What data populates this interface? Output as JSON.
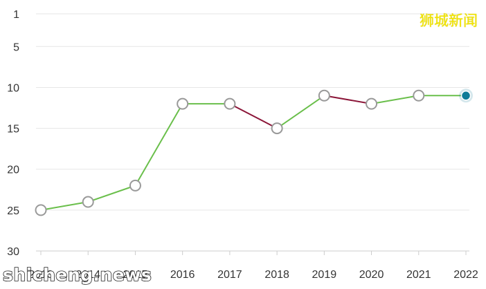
{
  "watermarks": {
    "top_right": "狮城新闻",
    "bottom_left": "shicheng.news"
  },
  "colors": {
    "up_line": "#6abf4b",
    "down_line": "#8b1538",
    "grid": "#e6e6e6",
    "marker_stroke": "#999999",
    "marker_fill": "#ffffff",
    "highlight": "#0e7c98"
  },
  "chart_data": {
    "type": "line",
    "title": "",
    "xlabel": "",
    "ylabel": "",
    "y_reversed": true,
    "ylim": [
      1,
      30
    ],
    "yticks": [
      1,
      5,
      10,
      15,
      20,
      25,
      30
    ],
    "categories": [
      "2013",
      "2014",
      "2015",
      "2016",
      "2017",
      "2018",
      "2019",
      "2020",
      "2021",
      "2022"
    ],
    "series": [
      {
        "values": [
          25,
          24,
          22,
          12,
          12,
          15,
          11,
          12,
          11,
          11
        ]
      }
    ],
    "highlight_index": 9,
    "grid": true,
    "legend": "none"
  }
}
